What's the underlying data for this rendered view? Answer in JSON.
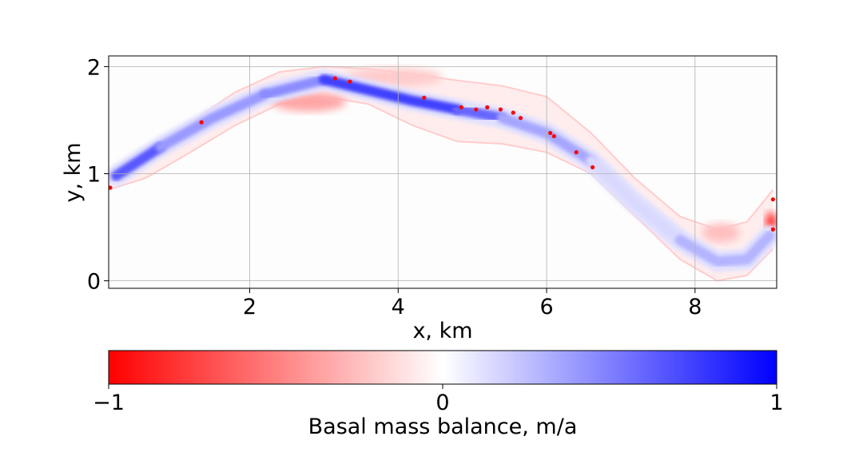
{
  "chart_data": {
    "type": "heatmap",
    "title": "",
    "xlabel": "x, km",
    "ylabel": "y, km",
    "xlim": [
      0.1,
      9.1
    ],
    "ylim": [
      -0.07,
      2.1
    ],
    "x_ticks": [
      2,
      4,
      6,
      8
    ],
    "y_ticks": [
      0,
      1,
      2
    ],
    "x_tick_labels": [
      "2",
      "4",
      "6",
      "8"
    ],
    "y_tick_labels": [
      "0",
      "1",
      "2"
    ],
    "grid": true,
    "colormap": "bwr",
    "colormap_reversed": true,
    "colors": {
      "negative": "#ff0000",
      "zero": "#ffffff",
      "positive": "#0000ff"
    },
    "colorbar": {
      "label": "Basal mass balance, m/a",
      "orientation": "horizontal",
      "placement": "bottom",
      "range": [
        -1,
        1
      ],
      "ticks": [
        -1,
        0,
        1
      ],
      "tick_labels": [
        "−1",
        "0",
        "1"
      ]
    },
    "domain_outline": {
      "upper_boundary": [
        [
          0.1,
          0.92
        ],
        [
          0.6,
          1.2
        ],
        [
          1.2,
          1.48
        ],
        [
          1.8,
          1.76
        ],
        [
          2.4,
          1.95
        ],
        [
          3.0,
          2.0
        ],
        [
          3.6,
          1.98
        ],
        [
          4.2,
          1.93
        ],
        [
          4.8,
          1.87
        ],
        [
          5.4,
          1.82
        ],
        [
          6.0,
          1.72
        ],
        [
          6.6,
          1.38
        ],
        [
          7.2,
          0.95
        ],
        [
          7.8,
          0.6
        ],
        [
          8.3,
          0.48
        ],
        [
          8.7,
          0.55
        ],
        [
          9.05,
          0.85
        ]
      ],
      "lower_boundary": [
        [
          0.1,
          0.85
        ],
        [
          0.6,
          0.96
        ],
        [
          1.2,
          1.2
        ],
        [
          1.8,
          1.45
        ],
        [
          2.4,
          1.65
        ],
        [
          3.0,
          1.72
        ],
        [
          3.6,
          1.65
        ],
        [
          4.2,
          1.45
        ],
        [
          4.8,
          1.3
        ],
        [
          5.4,
          1.28
        ],
        [
          6.0,
          1.2
        ],
        [
          6.6,
          1.0
        ],
        [
          7.2,
          0.6
        ],
        [
          7.8,
          0.2
        ],
        [
          8.3,
          0.0
        ],
        [
          8.7,
          0.05
        ],
        [
          9.05,
          0.3
        ]
      ],
      "centerline": [
        [
          0.2,
          0.98
        ],
        [
          0.8,
          1.25
        ],
        [
          1.5,
          1.52
        ],
        [
          2.2,
          1.74
        ],
        [
          3.0,
          1.88
        ],
        [
          3.6,
          1.78
        ],
        [
          4.2,
          1.68
        ],
        [
          4.8,
          1.6
        ],
        [
          5.4,
          1.52
        ],
        [
          6.0,
          1.38
        ],
        [
          6.6,
          1.12
        ],
        [
          7.2,
          0.72
        ],
        [
          7.8,
          0.38
        ],
        [
          8.3,
          0.18
        ],
        [
          8.7,
          0.2
        ],
        [
          9.0,
          0.42
        ]
      ]
    },
    "melt_regions": [
      {
        "x": [
          0.15,
          0.9
        ],
        "y_center": [
          0.98,
          1.2
        ],
        "value": 0.65
      },
      {
        "x": [
          0.9,
          2.2
        ],
        "y_center": [
          1.2,
          1.72
        ],
        "value": 0.4
      },
      {
        "x": [
          2.2,
          3.2
        ],
        "y_center": [
          1.72,
          1.9
        ],
        "value": 0.45
      },
      {
        "x": [
          3.2,
          4.6
        ],
        "y_center": [
          1.85,
          1.68
        ],
        "value": 0.75
      },
      {
        "x": [
          4.6,
          5.6
        ],
        "y_center": [
          1.68,
          1.52
        ],
        "value": 0.6
      },
      {
        "x": [
          5.6,
          6.6
        ],
        "y_center": [
          1.52,
          1.12
        ],
        "value": 0.35
      },
      {
        "x": [
          6.6,
          7.8
        ],
        "y_center": [
          1.12,
          0.38
        ],
        "value": 0.15
      },
      {
        "x": [
          7.8,
          9.0
        ],
        "y_center": [
          0.38,
          0.42
        ],
        "value": 0.3
      }
    ],
    "freeze_regions": [
      {
        "x": [
          2.3,
          3.3
        ],
        "y_center": 1.67,
        "value": -0.35
      },
      {
        "x": [
          3.3,
          4.6
        ],
        "y_center": 1.9,
        "value": -0.2
      },
      {
        "x": [
          8.1,
          8.6
        ],
        "y_center": 0.45,
        "value": -0.25
      },
      {
        "x": [
          8.95,
          9.1
        ],
        "y_center": 0.55,
        "value": -0.8
      }
    ],
    "freeze_spots": [
      [
        0.12,
        0.87
      ],
      [
        1.35,
        1.48
      ],
      [
        3.15,
        1.89
      ],
      [
        3.35,
        1.86
      ],
      [
        4.35,
        1.71
      ],
      [
        4.85,
        1.62
      ],
      [
        5.05,
        1.6
      ],
      [
        5.2,
        1.62
      ],
      [
        5.38,
        1.6
      ],
      [
        5.55,
        1.57
      ],
      [
        5.65,
        1.52
      ],
      [
        6.05,
        1.38
      ],
      [
        6.1,
        1.35
      ],
      [
        6.4,
        1.2
      ],
      [
        6.62,
        1.06
      ],
      [
        9.05,
        0.76
      ],
      [
        9.05,
        0.48
      ]
    ]
  }
}
